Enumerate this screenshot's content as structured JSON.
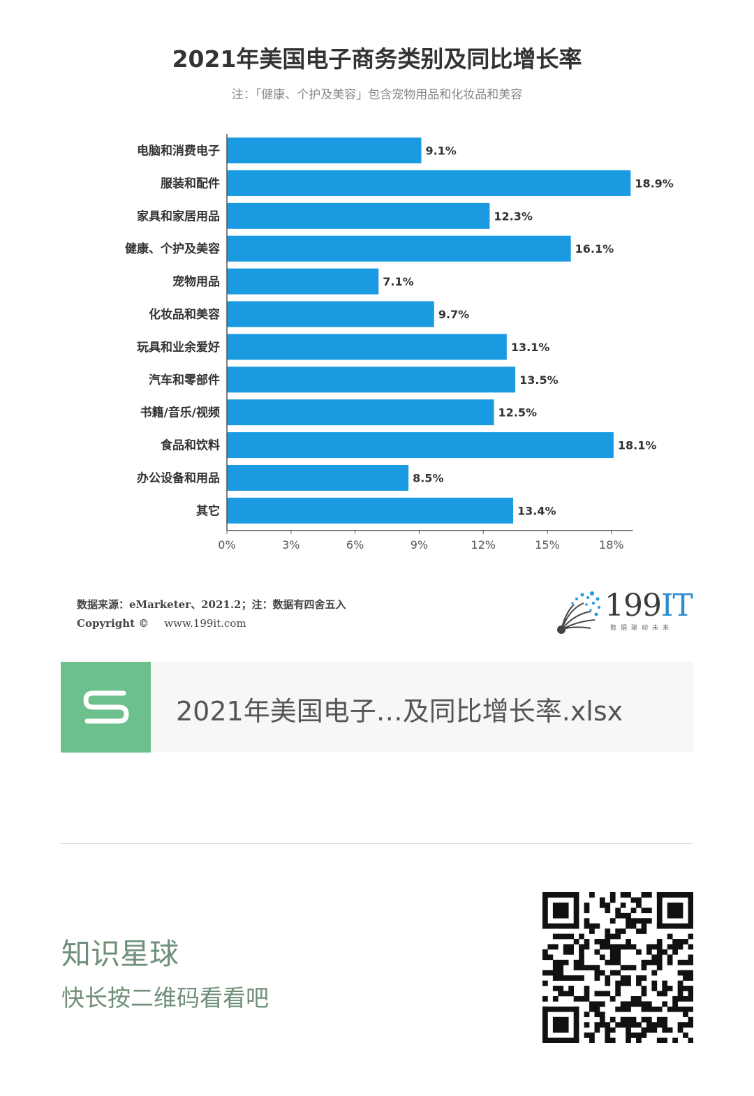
{
  "title": "2021年美国电子商务类别及同比增长率",
  "subtitle": "注：「健康、个护及美容」包含宠物用品和化妆品和美容",
  "chart_data": {
    "type": "bar",
    "orientation": "horizontal",
    "categories": [
      "电脑和消费电子",
      "服装和配件",
      "家具和家居用品",
      "健康、个护及美容",
      "宠物用品",
      "化妆品和美容",
      "玩具和业余爱好",
      "汽车和零部件",
      "书籍/音乐/视频",
      "食品和饮料",
      "办公设备和用品",
      "其它"
    ],
    "values": [
      9.1,
      18.9,
      12.3,
      16.1,
      7.1,
      9.7,
      13.1,
      13.5,
      12.5,
      18.1,
      8.5,
      13.4
    ],
    "value_labels": [
      "9.1%",
      "18.9%",
      "12.3%",
      "16.1%",
      "7.1%",
      "9.7%",
      "13.1%",
      "13.5%",
      "12.5%",
      "18.1%",
      "8.5%",
      "13.4%"
    ],
    "xticks": [
      "0%",
      "3%",
      "6%",
      "9%",
      "12%",
      "15%",
      "18%"
    ],
    "xlim": [
      0,
      19
    ],
    "bar_color": "#1a9ae0",
    "grid": false
  },
  "source": "数据来源：eMarketer、2021.2；注：数据有四舍五入",
  "copyright": {
    "label": "Copyright ©",
    "url": "www.199it.com"
  },
  "logo": {
    "main": "199",
    "accent": "IT",
    "tagline": "数据驱动未来"
  },
  "file": {
    "name": "2021年美国电子…及同比增长率.xlsx",
    "icon": "spreadsheet-s-icon",
    "icon_color": "#6cc08c"
  },
  "promo": {
    "title": "知识星球",
    "subtitle": "快长按二维码看看吧",
    "color": "#6f8f78"
  }
}
